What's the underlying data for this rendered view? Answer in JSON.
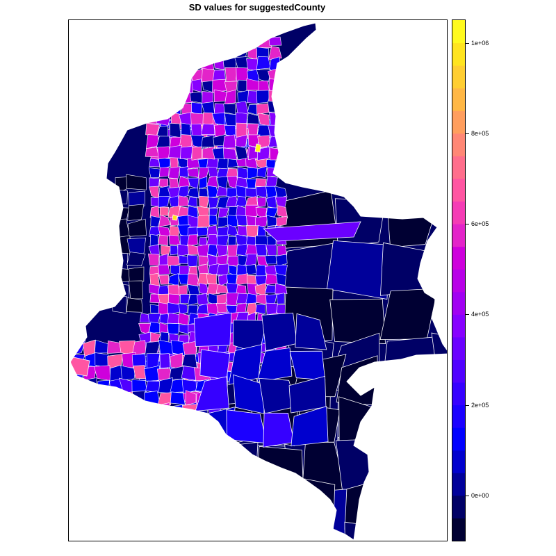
{
  "title": "SD values for suggestedCounty",
  "legend": {
    "ticks": [
      "0e+00",
      "2e+05",
      "4e+05",
      "6e+05",
      "8e+05",
      "1e+06"
    ],
    "tick_values": [
      0,
      200000,
      400000,
      600000,
      800000,
      1000000
    ],
    "range": [
      -100000,
      1050000
    ],
    "breaks_step": 50000,
    "colors": [
      "#000033",
      "#000066",
      "#00009A",
      "#0000CE",
      "#0000FF",
      "#1B00FF",
      "#3600FF",
      "#5000FF",
      "#6B00FF",
      "#8700FF",
      "#A100F2",
      "#B800E7",
      "#CE00DC",
      "#E324C9",
      "#F53CB5",
      "#FF55A2",
      "#FF6E8C",
      "#FF8775",
      "#FF9E5E",
      "#FFB745",
      "#FFCE32",
      "#FFE41F",
      "#FFFA1E"
    ]
  },
  "map": {
    "region": "Colombia",
    "boundary_color": "#FFFFFF",
    "background": "#FFFFFF"
  }
}
